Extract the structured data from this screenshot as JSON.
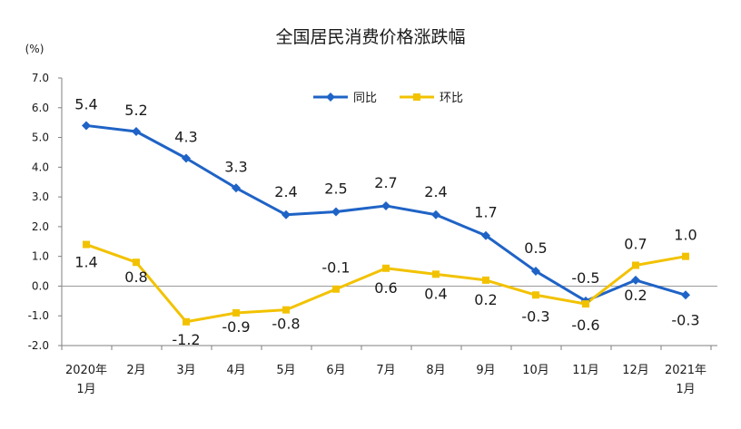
{
  "chart_data": {
    "type": "line",
    "title": "全国居民消费价格涨跌幅",
    "unit_label": "(%)",
    "xlabel": "",
    "ylabel": "",
    "ylim": [
      -2.0,
      7.0
    ],
    "ytick_values": [
      -2.0,
      -1.0,
      0.0,
      1.0,
      2.0,
      3.0,
      4.0,
      5.0,
      6.0,
      7.0
    ],
    "ytick_labels": [
      "-2.0",
      "-1.0",
      "0.0",
      "1.0",
      "2.0",
      "3.0",
      "4.0",
      "5.0",
      "6.0",
      "7.0"
    ],
    "categories": [
      [
        "2020年",
        "1月"
      ],
      [
        "2月"
      ],
      [
        "3月"
      ],
      [
        "4月"
      ],
      [
        "5月"
      ],
      [
        "6月"
      ],
      [
        "7月"
      ],
      [
        "8月"
      ],
      [
        "9月"
      ],
      [
        "10月"
      ],
      [
        "11月"
      ],
      [
        "12月"
      ],
      [
        "2021年",
        "1月"
      ]
    ],
    "legend_position": "top-center",
    "grid": false,
    "series": [
      {
        "name": "同比",
        "color": "#1f63c6",
        "marker": "diamond",
        "values": [
          5.4,
          5.2,
          4.3,
          3.3,
          2.4,
          2.5,
          2.7,
          2.4,
          1.7,
          0.5,
          -0.5,
          0.2,
          -0.3
        ],
        "labels": [
          "5.4",
          "5.2",
          "4.3",
          "3.3",
          "2.4",
          "2.5",
          "2.7",
          "2.4",
          "1.7",
          "0.5",
          "-0.5",
          "0.2",
          "-0.3"
        ]
      },
      {
        "name": "环比",
        "color": "#f2c200",
        "marker": "square",
        "values": [
          1.4,
          0.8,
          -1.2,
          -0.9,
          -0.8,
          -0.1,
          0.6,
          0.4,
          0.2,
          -0.3,
          -0.6,
          0.7,
          1.0
        ],
        "labels": [
          "1.4",
          "0.8",
          "-1.2",
          "-0.9",
          "-0.8",
          "-0.1",
          "0.6",
          "0.4",
          "0.2",
          "-0.3",
          "-0.6",
          "0.7",
          "1.0"
        ]
      }
    ]
  }
}
